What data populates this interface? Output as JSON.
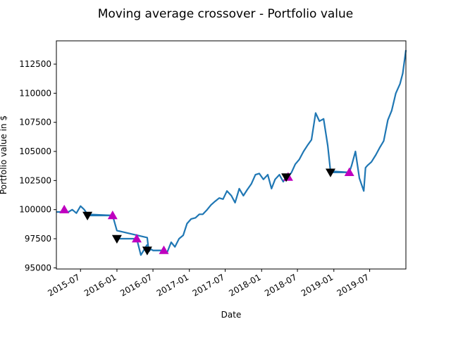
{
  "chart_data": {
    "type": "line",
    "title": "Moving average crossover - Portfolio value",
    "xlabel": "Date",
    "ylabel": "Portfolio value in $",
    "xlim": [
      "2015-03-01",
      "2019-12-31"
    ],
    "ylim": [
      94900,
      114500
    ],
    "grid": false,
    "x_ticks": [
      "2015-07-01",
      "2016-01-01",
      "2016-07-01",
      "2017-01-01",
      "2017-07-01",
      "2018-01-01",
      "2018-07-01",
      "2019-01-01",
      "2019-07-01"
    ],
    "x_tick_labels": [
      "2015-07",
      "2016-01",
      "2016-07",
      "2017-01",
      "2017-07",
      "2018-01",
      "2018-07",
      "2019-01",
      "2019-07"
    ],
    "y_ticks": [
      95000,
      97500,
      100000,
      102500,
      105000,
      107500,
      110000,
      112500
    ],
    "y_tick_labels": [
      "95000",
      "97500",
      "100000",
      "102500",
      "105000",
      "107500",
      "110000",
      "112500"
    ],
    "colors": {
      "line": "#1f77b4",
      "buy_marker": "#bf00bf",
      "sell_marker": "#000000"
    },
    "series": [
      {
        "type": "line",
        "x": [
          "2015-03-01",
          "2015-04-10",
          "2015-05-01",
          "2015-05-20",
          "2015-06-10",
          "2015-07-01",
          "2015-07-20",
          "2015-08-05",
          "2015-12-10",
          "2016-01-01",
          "2016-06-02",
          "2016-06-10",
          "2016-06-20",
          "2016-07-01",
          "2016-08-25",
          "2016-09-10",
          "2016-10-01",
          "2016-10-20",
          "2016-11-10",
          "2016-12-01",
          "2016-12-20",
          "2017-01-10",
          "2017-02-01",
          "2017-02-20",
          "2017-03-10",
          "2017-04-01",
          "2017-04-20",
          "2017-05-10",
          "2017-06-01",
          "2017-06-20",
          "2017-07-10",
          "2017-08-01",
          "2017-08-20",
          "2017-09-10",
          "2017-10-01",
          "2017-10-20",
          "2017-11-10",
          "2017-12-01",
          "2017-12-20",
          "2018-01-10",
          "2018-02-01",
          "2018-02-20",
          "2018-03-10",
          "2018-04-01",
          "2018-04-20",
          "2018-05-05",
          "2018-05-15",
          "2018-06-01",
          "2018-06-20",
          "2018-07-10",
          "2018-08-01",
          "2018-08-20",
          "2018-09-10",
          "2018-10-01",
          "2018-10-20",
          "2018-11-10",
          "2018-12-01",
          "2018-12-15",
          "2019-03-20",
          "2019-04-01",
          "2019-04-20",
          "2019-05-10",
          "2019-06-01",
          "2019-06-10",
          "2019-06-20",
          "2019-07-10",
          "2019-08-01",
          "2019-08-20",
          "2019-09-10",
          "2019-10-01",
          "2019-10-20",
          "2019-11-10",
          "2019-12-01",
          "2019-12-15",
          "2019-12-31"
        ],
        "y": [
          99800,
          99800,
          99800,
          100000,
          99700,
          100300,
          100000,
          99600,
          99500,
          98200,
          97600,
          96400,
          96600,
          96500,
          96500,
          96300,
          97200,
          96800,
          97500,
          97800,
          98800,
          99200,
          99300,
          99600,
          99600,
          100000,
          100400,
          100700,
          101000,
          100900,
          101600,
          101200,
          100600,
          101800,
          101200,
          101700,
          102200,
          103000,
          103100,
          102600,
          103000,
          101800,
          102600,
          103000,
          102400,
          102800,
          102800,
          103200,
          103900,
          104300,
          105000,
          105500,
          106000,
          108300,
          107600,
          107800,
          105500,
          103300,
          103200,
          103800,
          105000,
          102700,
          101600,
          103600,
          103800,
          104100,
          104700,
          105300,
          105900,
          107700,
          108500,
          110000,
          110800,
          111700,
          113700
        ]
      },
      {
        "type": "line",
        "x": [
          "2015-08-05",
          "2015-12-10"
        ],
        "y": [
          99500,
          99500
        ]
      },
      {
        "type": "line",
        "x": [
          "2016-01-01",
          "2016-04-10"
        ],
        "y": [
          97500,
          97500
        ]
      },
      {
        "type": "line",
        "x": [
          "2016-04-10",
          "2016-05-01",
          "2016-06-02"
        ],
        "y": [
          97500,
          96100,
          97000
        ]
      },
      {
        "type": "line",
        "x": [
          "2016-07-01",
          "2016-08-25"
        ],
        "y": [
          96500,
          96500
        ]
      },
      {
        "type": "line",
        "x": [
          "2018-05-05",
          "2018-05-15"
        ],
        "y": [
          102800,
          102800
        ]
      },
      {
        "type": "line",
        "x": [
          "2018-12-15",
          "2019-03-20"
        ],
        "y": [
          103200,
          103200
        ]
      },
      {
        "type": "scatter",
        "marker": "triangle-up",
        "x": [
          "2015-04-10",
          "2015-12-10",
          "2016-04-10",
          "2016-08-25",
          "2018-05-15",
          "2019-03-20"
        ],
        "y": [
          100000,
          99500,
          97500,
          96500,
          102800,
          103200
        ]
      },
      {
        "type": "scatter",
        "marker": "triangle-down",
        "x": [
          "2015-08-05",
          "2016-01-01",
          "2016-06-02",
          "2018-05-05",
          "2018-12-15"
        ],
        "y": [
          99500,
          97500,
          96500,
          102800,
          103200
        ]
      }
    ]
  }
}
